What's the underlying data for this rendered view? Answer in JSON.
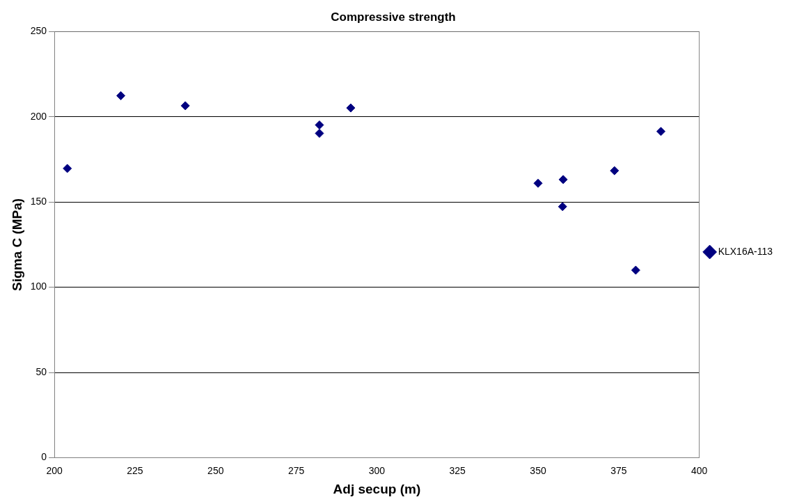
{
  "chart_data": {
    "type": "scatter",
    "title": "Compressive strength",
    "xlabel": "Adj secup (m)",
    "ylabel": "Sigma C (MPa)",
    "xlim": [
      200,
      400
    ],
    "xticks": [
      200,
      225,
      250,
      275,
      300,
      325,
      350,
      375,
      400
    ],
    "ylim": [
      0,
      250
    ],
    "yticks": [
      0,
      50,
      100,
      150,
      200,
      250
    ],
    "grid": "y",
    "legend": "right",
    "marker": "diamond",
    "series": [
      {
        "name": "KLX16A-113",
        "color": "#000080",
        "x": [
          204,
          220.6,
          240.6,
          282.2,
          282.2,
          291.9,
          350,
          357.8,
          357.6,
          373.7,
          380.3,
          388.1
        ],
        "values": [
          169.7,
          212.4,
          206.5,
          195.2,
          190.3,
          205.2,
          161,
          163.2,
          147.3,
          168.4,
          110,
          191.4
        ]
      }
    ]
  }
}
